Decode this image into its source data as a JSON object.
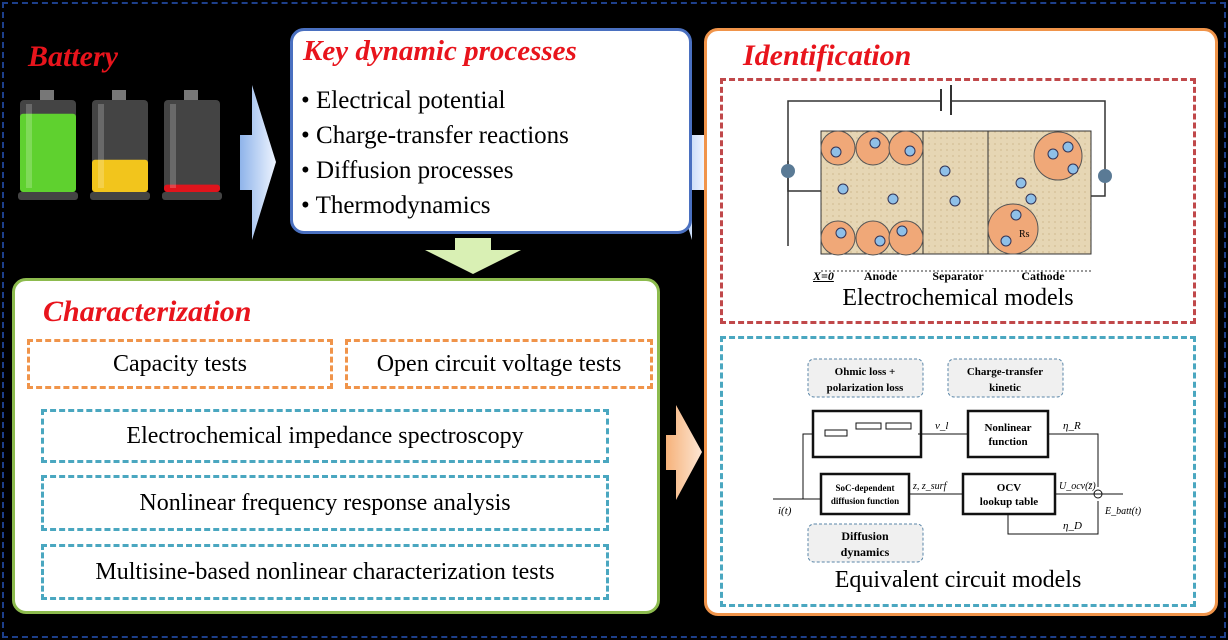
{
  "battery": {
    "title": "Battery",
    "levels": [
      0.85,
      0.35,
      0.08
    ],
    "colors": [
      "#5fd12f",
      "#f2c51c",
      "#e0141c"
    ]
  },
  "key_processes": {
    "title": "Key dynamic processes",
    "items": [
      "Electrical potential",
      "Charge-transfer reactions",
      "Diffusion processes",
      "Thermodynamics"
    ]
  },
  "characterization": {
    "title": "Characterization",
    "tests_orange": [
      "Capacity tests",
      "Open circuit voltage tests"
    ],
    "tests_blue": [
      "Electrochemical impedance spectroscopy",
      "Nonlinear frequency response analysis",
      "Multisine-based nonlinear characterization tests"
    ]
  },
  "identification": {
    "title": "Identification",
    "electrochemical": {
      "caption": "Electrochemical models",
      "regions": [
        "Anode",
        "Separator",
        "Cathode"
      ],
      "origin_label": "X=0",
      "radius_label": "Rs"
    },
    "ecm": {
      "caption": "Equivalent circuit models",
      "note_ohmic": [
        "Ohmic loss +",
        "polarization loss"
      ],
      "note_charge": [
        "Charge-transfer",
        "kinetic"
      ],
      "note_diffusion": [
        "Diffusion",
        "dynamics"
      ],
      "block_nonlinear": [
        "Nonlinear",
        "function"
      ],
      "block_soc": [
        "SoC-dependent",
        "diffusion function"
      ],
      "block_ocv": [
        "OCV",
        "lookup table"
      ],
      "sig_vl": "v_l",
      "sig_etaR": "η_R",
      "sig_etaD": "η_D",
      "sig_z": "z, z_surf",
      "sig_uocv": "U_ocv(z̄)",
      "sig_input": "i(t)",
      "sig_output": "E_batt(t)"
    }
  },
  "colors": {
    "title_red": "#e8141c",
    "key_border": "#4a70c0",
    "char_border": "#8dbb4e",
    "ident_border": "#f0944a",
    "blue_dash": "#4aa7c0",
    "red_dash": "#c0484a"
  }
}
